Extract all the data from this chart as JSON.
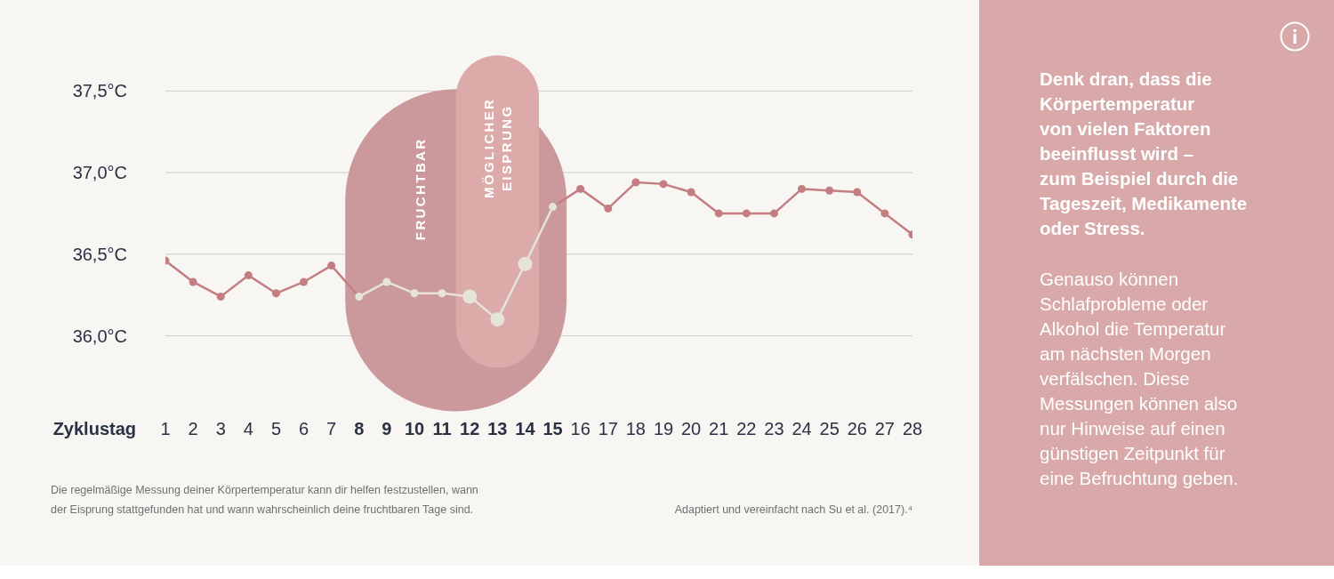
{
  "chart_data": [
    {
      "type": "line",
      "xlabel": "Zyklustag",
      "x": [
        1,
        2,
        3,
        4,
        5,
        6,
        7,
        8,
        9,
        10,
        11,
        12,
        13,
        14,
        15,
        16,
        17,
        18,
        19,
        20,
        21,
        22,
        23,
        24,
        25,
        26,
        27,
        28
      ],
      "xlim": [
        1,
        28
      ],
      "xticks": [
        1,
        2,
        3,
        4,
        5,
        6,
        7,
        8,
        9,
        10,
        11,
        12,
        13,
        14,
        15,
        16,
        17,
        18,
        19,
        20,
        21,
        22,
        23,
        24,
        25,
        26,
        27,
        28
      ],
      "ylim": [
        36,
        37.5
      ],
      "yticks": [
        {
          "value": 36,
          "label": "36,0°C"
        },
        {
          "value": 36.5,
          "label": "36,5°C"
        },
        {
          "value": 37,
          "label": "37,0°C"
        },
        {
          "value": 37.5,
          "label": "37,5°C"
        }
      ],
      "grid": "y",
      "marker": "circle",
      "series": [
        {
          "color": "#c47e82",
          "values": [
            36.46,
            36.33,
            36.24,
            36.37,
            36.26,
            36.33,
            36.43,
            36.24,
            null,
            null,
            null,
            null,
            null,
            null,
            36.79,
            36.9,
            36.78,
            36.94,
            36.93,
            36.88,
            36.75,
            36.75,
            36.75,
            36.9,
            36.89,
            36.88,
            36.75,
            36.62
          ]
        },
        {
          "color": "#e6e4d6",
          "values": [
            null,
            null,
            null,
            null,
            null,
            null,
            null,
            36.24,
            36.33,
            36.26,
            36.26,
            36.24,
            36.1,
            36.44,
            36.79,
            null,
            null,
            null,
            null,
            null,
            null,
            null,
            null,
            null,
            null,
            null,
            null,
            null
          ]
        }
      ],
      "bands": [
        {
          "axis": "x",
          "from": 7.5,
          "to": 15.5,
          "label": "FRUCHTBAR",
          "color": "#cb999b"
        },
        {
          "axis": "x",
          "from": 11.5,
          "to": 14.5,
          "label": "MÖGLICHER EISPRUNG",
          "color": "#dcaaa9"
        }
      ],
      "annotations": [
        "Die regelmäßige Messung deiner Körpertemperatur kann dir helfen festzustellen, wann der Eisprung stattgefunden hat und wann wahrscheinlich deine fruchtbaren Tage sind.",
        "Adaptiert und vereinfacht nach Su et al. (2017).⁴"
      ]
    },
    {
      "type": "other",
      "title": "Denk dran, dass die Körpertemperatur\nvon vielen Faktoren beeinflusst wird –\nzum Beispiel durch die Tageszeit, Medikamente oder Stress.",
      "annotations": [
        "Genauso können Schlafprobleme oder Alkohol die Temperatur am nächsten Morgen verfälschen. Diese Messungen können also nur Hinweise auf einen günstigen Zeitpunkt für eine Befruchtung geben."
      ]
    }
  ]
}
